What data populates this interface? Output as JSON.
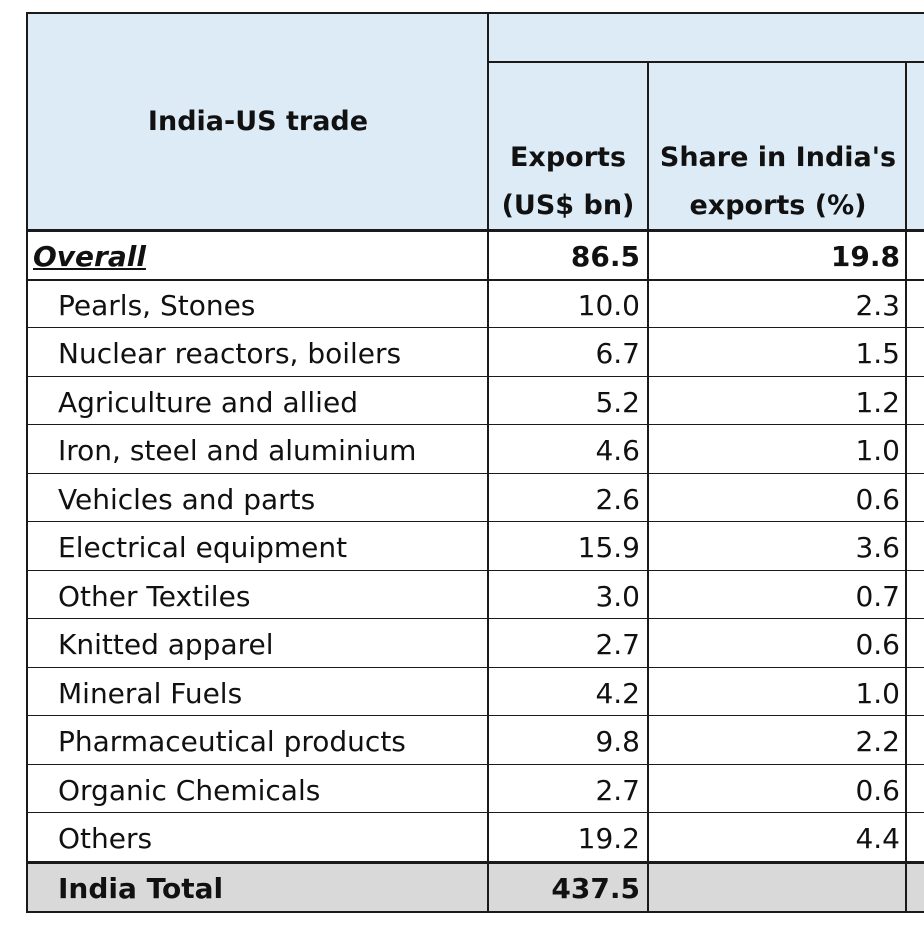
{
  "table": {
    "corner_label": "India-US trade",
    "columns": [
      {
        "line1": "Exports",
        "line2": "(US$ bn)"
      },
      {
        "line1": "Share in India's",
        "line2": "exports (%)"
      }
    ],
    "overall": {
      "label": "Overall",
      "exports": "86.5",
      "share": "19.8"
    },
    "rows": [
      {
        "label": "Pearls, Stones",
        "exports": "10.0",
        "share": "2.3"
      },
      {
        "label": "Nuclear reactors, boilers",
        "exports": "6.7",
        "share": "1.5"
      },
      {
        "label": "Agriculture and allied",
        "exports": "5.2",
        "share": "1.2"
      },
      {
        "label": "Iron, steel and aluminium",
        "exports": "4.6",
        "share": "1.0"
      },
      {
        "label": "Vehicles and parts",
        "exports": "2.6",
        "share": "0.6"
      },
      {
        "label": "Electrical equipment",
        "exports": "15.9",
        "share": "3.6"
      },
      {
        "label": "Other Textiles",
        "exports": "3.0",
        "share": "0.7"
      },
      {
        "label": "Knitted apparel",
        "exports": "2.7",
        "share": "0.6"
      },
      {
        "label": "Mineral Fuels",
        "exports": "4.2",
        "share": "1.0"
      },
      {
        "label": "Pharmaceutical products",
        "exports": "9.8",
        "share": "2.2"
      },
      {
        "label": "Organic Chemicals",
        "exports": "2.7",
        "share": "0.6"
      },
      {
        "label": "Others",
        "exports": "19.2",
        "share": "4.4"
      }
    ],
    "total": {
      "label": "India Total",
      "exports": "437.5",
      "share": ""
    }
  },
  "colors": {
    "header_bg": "#ddebf7",
    "total_bg": "#d9d9d9",
    "grid": "#1a1a1a"
  }
}
